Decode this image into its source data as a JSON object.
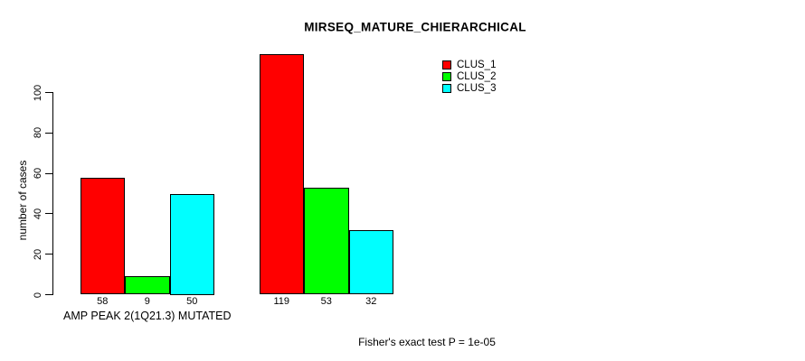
{
  "chart_data": {
    "type": "bar",
    "title": "MIRSEQ_MATURE_CHIERARCHICAL",
    "ylabel": "number of cases",
    "xlabel": "",
    "ylim": [
      0,
      100
    ],
    "yticks": [
      0,
      20,
      40,
      60,
      80,
      100
    ],
    "grid": false,
    "legend_position": "top-right",
    "categories": [
      "AMP PEAK 2(1Q21.3) MUTATED",
      ""
    ],
    "series": [
      {
        "name": "CLUS_1",
        "color": "#ff0000",
        "values": [
          58,
          119
        ]
      },
      {
        "name": "CLUS_2",
        "color": "#00ff00",
        "values": [
          9,
          53
        ]
      },
      {
        "name": "CLUS_3",
        "color": "#00ffff",
        "values": [
          50,
          32
        ]
      }
    ],
    "bar_value_labels": [
      [
        58,
        9,
        50
      ],
      [
        119,
        53,
        32
      ]
    ],
    "annotation": "Fisher's exact test P = 1e-05"
  },
  "colors": {
    "background": "#ffffff",
    "axis": "#000000",
    "text": "#000000"
  }
}
